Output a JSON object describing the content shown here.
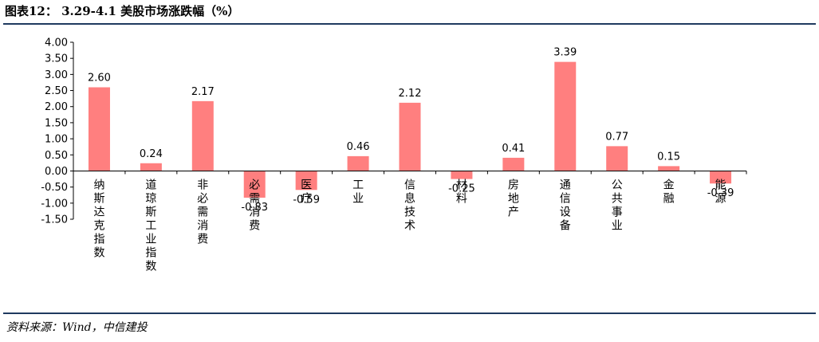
{
  "header": {
    "title": "图表12： 3.29-4.1 美股市场涨跌幅（%）"
  },
  "footer": {
    "source": "资料来源：Wind，中信建投"
  },
  "chart_data": {
    "type": "bar",
    "categories": [
      "纳斯达克指数",
      "道琼斯工业指数",
      "非必需消费",
      "必需消费",
      "医疗",
      "工业",
      "信息技术",
      "材料",
      "房地产",
      "通信设备",
      "公共事业",
      "金融",
      "能源"
    ],
    "values": [
      2.6,
      0.24,
      2.17,
      -0.83,
      -0.59,
      0.46,
      2.12,
      -0.25,
      0.41,
      3.39,
      0.77,
      0.15,
      -0.39
    ],
    "data_labels": [
      "2.60",
      "0.24",
      "2.17",
      "-0.83",
      "-0.59",
      "0.46",
      "2.12",
      "-0.25",
      "0.41",
      "3.39",
      "0.77",
      "0.15",
      "-0.39"
    ],
    "y_ticks": [
      "4.00",
      "3.50",
      "3.00",
      "2.50",
      "2.00",
      "1.50",
      "1.00",
      "0.50",
      "0.00",
      "-0.50",
      "-1.00",
      "-1.50"
    ],
    "ylim": [
      -1.5,
      4.0
    ],
    "title": "",
    "xlabel": "",
    "ylabel": "",
    "grid": false,
    "bar_color": "#ff7f7f"
  }
}
